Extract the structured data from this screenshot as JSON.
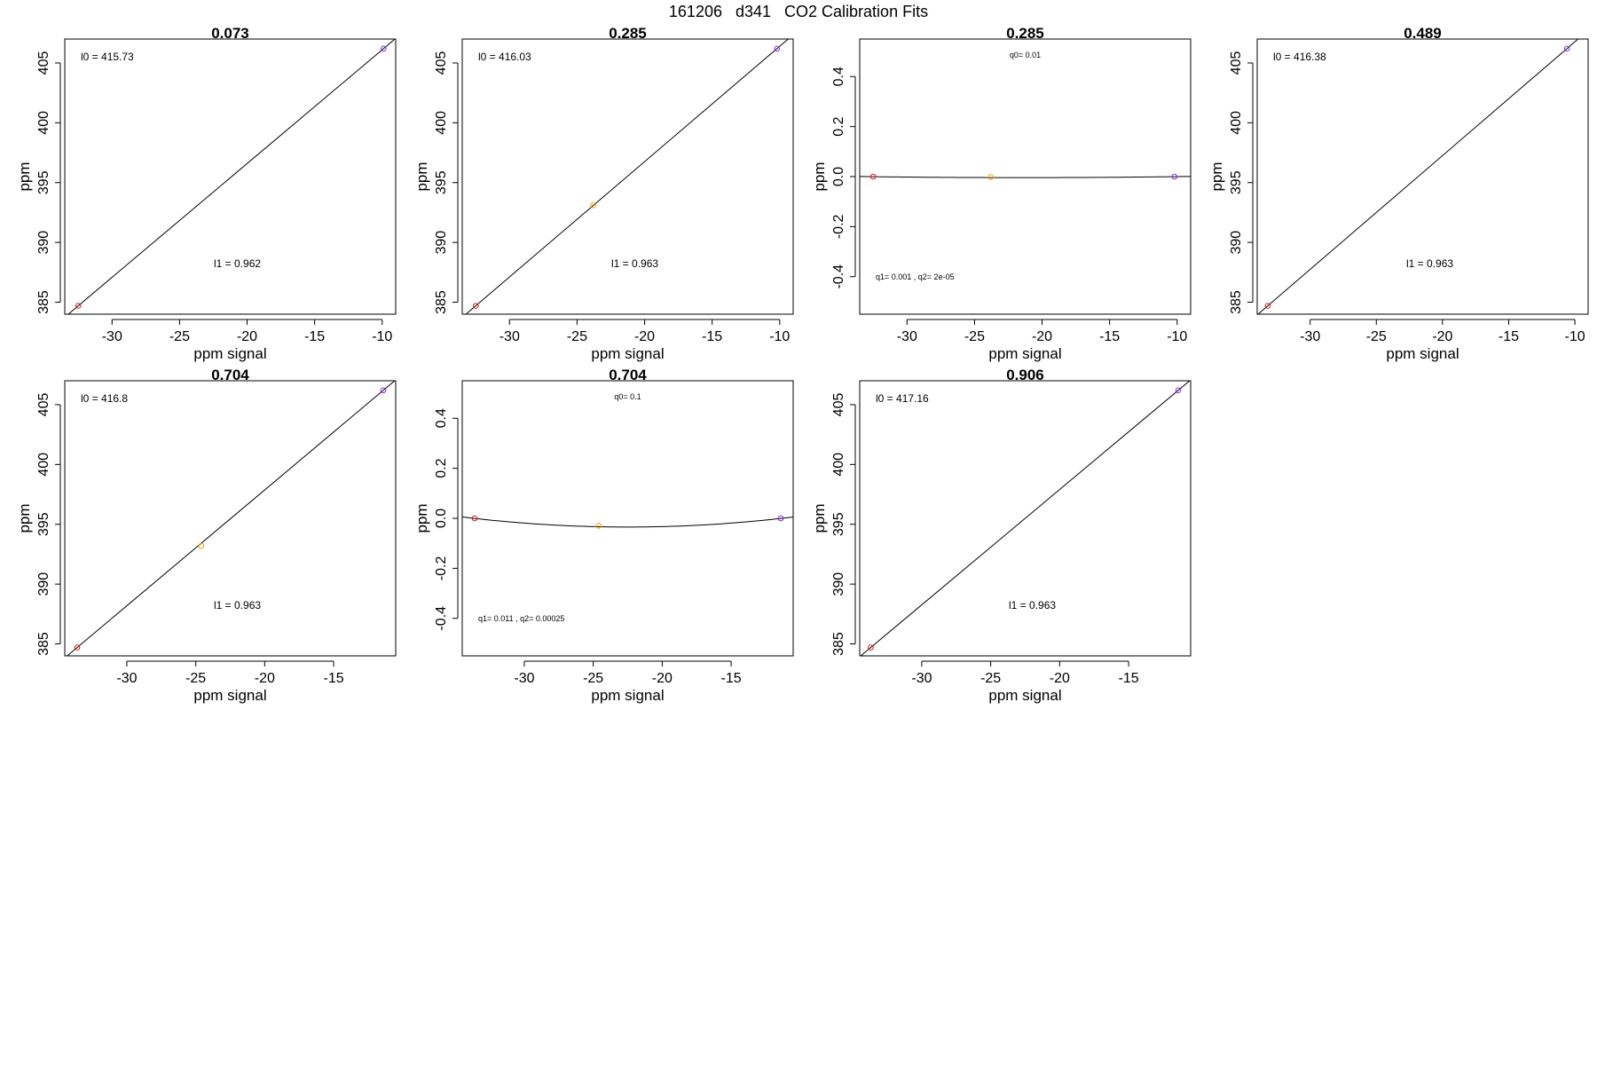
{
  "figure": {
    "title": "161206   d341   CO2 Calibration Fits"
  },
  "chart_data": [
    {
      "type": "scatter",
      "title": "0.073",
      "xlabel": "ppm signal",
      "ylabel": "ppm",
      "xlim": [
        -33.5,
        -9
      ],
      "ylim": [
        384,
        407
      ],
      "xticks": [
        -30,
        -25,
        -20,
        -15,
        -10
      ],
      "yticks": [
        385,
        390,
        395,
        400,
        405
      ],
      "points": [
        {
          "x": -32.5,
          "y": 384.7,
          "color": "#e41a1c"
        },
        {
          "x": -9.9,
          "y": 406.2,
          "color": "#8a2be2"
        }
      ],
      "fit": {
        "kind": "line",
        "x0": -32.5,
        "y0": 384.7,
        "x1": -9.9,
        "y1": 406.2
      },
      "annotations": [
        {
          "text": "l0 =  415.73",
          "pos": "top-left"
        },
        {
          "text": "l1 =  0.962",
          "pos": "bottom-center"
        }
      ]
    },
    {
      "type": "scatter",
      "title": "0.285",
      "xlabel": "ppm signal",
      "ylabel": "ppm",
      "xlim": [
        -33.5,
        -9
      ],
      "ylim": [
        384,
        407
      ],
      "xticks": [
        -30,
        -25,
        -20,
        -15,
        -10
      ],
      "yticks": [
        385,
        390,
        395,
        400,
        405
      ],
      "points": [
        {
          "x": -32.5,
          "y": 384.7,
          "color": "#e41a1c"
        },
        {
          "x": -23.8,
          "y": 393.1,
          "color": "#ff9900"
        },
        {
          "x": -10.2,
          "y": 406.2,
          "color": "#8a2be2"
        }
      ],
      "fit": {
        "kind": "line",
        "x0": -32.5,
        "y0": 384.7,
        "x1": -10.2,
        "y1": 406.2
      },
      "annotations": [
        {
          "text": "l0 =  416.03",
          "pos": "top-left"
        },
        {
          "text": "l1 =  0.963",
          "pos": "bottom-center"
        }
      ]
    },
    {
      "type": "scatter",
      "title": "0.285",
      "xlabel": "ppm signal",
      "ylabel": "ppm",
      "xlim": [
        -33.5,
        -9
      ],
      "ylim": [
        -0.55,
        0.55
      ],
      "xticks": [
        -30,
        -25,
        -20,
        -15,
        -10
      ],
      "yticks": [
        -0.4,
        -0.2,
        0.0,
        0.2,
        0.4
      ],
      "points": [
        {
          "x": -32.5,
          "y": 0.0,
          "color": "#e41a1c"
        },
        {
          "x": -23.8,
          "y": -0.002,
          "color": "#ff9900"
        },
        {
          "x": -10.2,
          "y": 0.0,
          "color": "#8a2be2"
        }
      ],
      "fit": {
        "kind": "quadratic",
        "xv": -21.4,
        "yv": -0.004,
        "a": 3e-05
      },
      "annotations": [
        {
          "text": "q0= 0.01",
          "pos": "top-center"
        },
        {
          "text": "q1= 0.001 , q2= 2e-05",
          "pos": "bottom-left"
        }
      ]
    },
    {
      "type": "scatter",
      "title": "0.489",
      "xlabel": "ppm signal",
      "ylabel": "ppm",
      "xlim": [
        -34,
        -9
      ],
      "ylim": [
        384,
        407
      ],
      "xticks": [
        -30,
        -25,
        -20,
        -15,
        -10
      ],
      "yticks": [
        385,
        390,
        395,
        400,
        405
      ],
      "points": [
        {
          "x": -33.2,
          "y": 384.7,
          "color": "#e41a1c"
        },
        {
          "x": -10.6,
          "y": 406.2,
          "color": "#8a2be2"
        }
      ],
      "fit": {
        "kind": "line",
        "x0": -33.2,
        "y0": 384.7,
        "x1": -10.6,
        "y1": 406.2
      },
      "annotations": [
        {
          "text": "l0 =  416.38",
          "pos": "top-left"
        },
        {
          "text": "l1 =  0.963",
          "pos": "bottom-center"
        }
      ]
    },
    {
      "type": "scatter",
      "title": "0.704",
      "xlabel": "ppm signal",
      "ylabel": "ppm",
      "xlim": [
        -34.5,
        -10.5
      ],
      "ylim": [
        384,
        407
      ],
      "xticks": [
        -30,
        -25,
        -20,
        -15
      ],
      "yticks": [
        385,
        390,
        395,
        400,
        405
      ],
      "points": [
        {
          "x": -33.6,
          "y": 384.7,
          "color": "#e41a1c"
        },
        {
          "x": -24.6,
          "y": 393.2,
          "color": "#ff9900"
        },
        {
          "x": -11.4,
          "y": 406.2,
          "color": "#8a2be2"
        }
      ],
      "fit": {
        "kind": "line",
        "x0": -33.6,
        "y0": 384.7,
        "x1": -11.4,
        "y1": 406.2
      },
      "annotations": [
        {
          "text": "l0 =  416.8",
          "pos": "top-left"
        },
        {
          "text": "l1 =  0.963",
          "pos": "bottom-center"
        }
      ]
    },
    {
      "type": "scatter",
      "title": "0.704",
      "xlabel": "ppm signal",
      "ylabel": "ppm",
      "xlim": [
        -34.5,
        -10.5
      ],
      "ylim": [
        -0.55,
        0.55
      ],
      "xticks": [
        -30,
        -25,
        -20,
        -15
      ],
      "yticks": [
        -0.4,
        -0.2,
        0.0,
        0.2,
        0.4
      ],
      "points": [
        {
          "x": -33.6,
          "y": 0.0,
          "color": "#e41a1c"
        },
        {
          "x": -24.6,
          "y": -0.03,
          "color": "#ff9900"
        },
        {
          "x": -11.4,
          "y": 0.0,
          "color": "#8a2be2"
        }
      ],
      "fit": {
        "kind": "quadratic",
        "xv": -22.5,
        "yv": -0.035,
        "a": 0.00028
      },
      "annotations": [
        {
          "text": "q0= 0.1",
          "pos": "top-center"
        },
        {
          "text": "q1= 0.011 , q2= 0.00025",
          "pos": "bottom-left"
        }
      ]
    },
    {
      "type": "scatter",
      "title": "0.906",
      "xlabel": "ppm signal",
      "ylabel": "ppm",
      "xlim": [
        -34.5,
        -10.5
      ],
      "ylim": [
        384,
        407
      ],
      "xticks": [
        -30,
        -25,
        -20,
        -15
      ],
      "yticks": [
        385,
        390,
        395,
        400,
        405
      ],
      "points": [
        {
          "x": -33.7,
          "y": 384.7,
          "color": "#e41a1c"
        },
        {
          "x": -11.4,
          "y": 406.2,
          "color": "#8a2be2"
        }
      ],
      "fit": {
        "kind": "line",
        "x0": -33.7,
        "y0": 384.7,
        "x1": -11.4,
        "y1": 406.2
      },
      "annotations": [
        {
          "text": "l0 =  417.16",
          "pos": "top-left"
        },
        {
          "text": "l1 =  0.963",
          "pos": "bottom-center"
        }
      ]
    }
  ]
}
